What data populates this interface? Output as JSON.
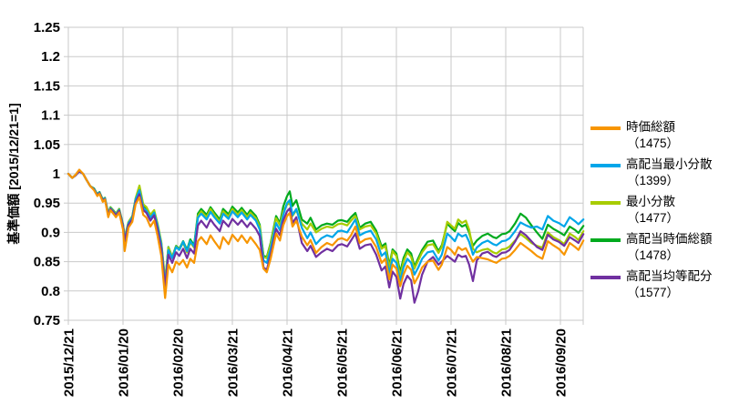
{
  "figure": {
    "y_axis_label": "基準価額 [2015/12/21=1]",
    "y_ticks": [
      "1.25",
      "1.2",
      "1.15",
      "1.1",
      "1.05",
      "1",
      "0.95",
      "0.9",
      "0.85",
      "0.8",
      "0.75"
    ],
    "y_tick_values": [
      1.25,
      1.2,
      1.15,
      1.1,
      1.05,
      1.0,
      0.95,
      0.9,
      0.85,
      0.8,
      0.75
    ],
    "x_ticks": [
      "2015/12/21",
      "2016/01/20",
      "2016/02/20",
      "2016/03/21",
      "2016/04/21",
      "2016/05/21",
      "2016/06/21",
      "2016/07/21",
      "2016/08/21",
      "2016/09/20"
    ],
    "grid_color": "#c9c9c9",
    "background": "#ffffff"
  },
  "chart_data": {
    "type": "line",
    "title": "",
    "xlabel": "",
    "ylabel": "基準価額 [2015/12/21=1]",
    "ylim": [
      0.75,
      1.25
    ],
    "xlim": [
      0,
      9.42
    ],
    "grid": true,
    "legend_position": "right",
    "x_unit": "months since 2015/12/21 (one unit = one x-axis tick interval)",
    "x": [
      0,
      0.07,
      0.13,
      0.2,
      0.27,
      0.33,
      0.4,
      0.47,
      0.53,
      0.57,
      0.63,
      0.67,
      0.73,
      0.77,
      0.83,
      0.87,
      0.93,
      1.0,
      1.03,
      1.1,
      1.17,
      1.23,
      1.3,
      1.37,
      1.43,
      1.5,
      1.57,
      1.63,
      1.7,
      1.77,
      1.83,
      1.9,
      1.97,
      2.03,
      2.1,
      2.17,
      2.23,
      2.3,
      2.37,
      2.43,
      2.53,
      2.6,
      2.67,
      2.77,
      2.83,
      2.93,
      3.0,
      3.1,
      3.17,
      3.27,
      3.33,
      3.43,
      3.5,
      3.57,
      3.63,
      3.7,
      3.8,
      3.87,
      3.93,
      4.0,
      4.05,
      4.1,
      4.17,
      4.27,
      4.37,
      4.43,
      4.53,
      4.63,
      4.73,
      4.83,
      4.93,
      5.0,
      5.1,
      5.17,
      5.25,
      5.33,
      5.43,
      5.53,
      5.63,
      5.73,
      5.8,
      5.87,
      5.93,
      6.0,
      6.07,
      6.13,
      6.2,
      6.27,
      6.33,
      6.4,
      6.47,
      6.57,
      6.67,
      6.77,
      6.83,
      6.93,
      7.0,
      7.07,
      7.13,
      7.2,
      7.27,
      7.33,
      7.4,
      7.47,
      7.57,
      7.67,
      7.77,
      7.83,
      7.93,
      8.0,
      8.07,
      8.17,
      8.27,
      8.37,
      8.47,
      8.57,
      8.67,
      8.77,
      8.87,
      8.97,
      9.07,
      9.17,
      9.27,
      9.33,
      9.42
    ],
    "series": [
      {
        "name": "時価総額",
        "code": "（1475）",
        "color": "#F79500",
        "values": [
          1.0,
          0.993,
          0.998,
          1.007,
          1.0,
          0.99,
          0.979,
          0.972,
          0.962,
          0.966,
          0.952,
          0.956,
          0.926,
          0.938,
          0.931,
          0.926,
          0.934,
          0.905,
          0.868,
          0.908,
          0.918,
          0.948,
          0.96,
          0.93,
          0.925,
          0.91,
          0.92,
          0.895,
          0.86,
          0.788,
          0.845,
          0.832,
          0.85,
          0.845,
          0.853,
          0.84,
          0.855,
          0.848,
          0.885,
          0.892,
          0.88,
          0.895,
          0.885,
          0.872,
          0.892,
          0.88,
          0.896,
          0.885,
          0.895,
          0.882,
          0.892,
          0.88,
          0.87,
          0.838,
          0.832,
          0.855,
          0.898,
          0.886,
          0.912,
          0.928,
          0.933,
          0.91,
          0.92,
          0.893,
          0.878,
          0.887,
          0.865,
          0.875,
          0.882,
          0.878,
          0.888,
          0.89,
          0.886,
          0.895,
          0.91,
          0.882,
          0.888,
          0.89,
          0.875,
          0.848,
          0.855,
          0.82,
          0.845,
          0.838,
          0.808,
          0.828,
          0.843,
          0.836,
          0.813,
          0.825,
          0.84,
          0.85,
          0.852,
          0.836,
          0.845,
          0.875,
          0.87,
          0.862,
          0.875,
          0.87,
          0.873,
          0.862,
          0.85,
          0.858,
          0.856,
          0.854,
          0.85,
          0.848,
          0.855,
          0.856,
          0.86,
          0.87,
          0.882,
          0.875,
          0.868,
          0.86,
          0.855,
          0.885,
          0.878,
          0.872,
          0.862,
          0.882,
          0.875,
          0.87,
          0.886
        ]
      },
      {
        "name": "高配当最小分散",
        "code": "（1399）",
        "color": "#00A6E9",
        "values": [
          1.0,
          0.993,
          0.997,
          1.004,
          1.0,
          0.99,
          0.979,
          0.974,
          0.964,
          0.968,
          0.955,
          0.958,
          0.93,
          0.941,
          0.935,
          0.93,
          0.938,
          0.912,
          0.888,
          0.916,
          0.926,
          0.956,
          0.972,
          0.942,
          0.937,
          0.925,
          0.934,
          0.912,
          0.88,
          0.81,
          0.87,
          0.856,
          0.875,
          0.87,
          0.884,
          0.868,
          0.885,
          0.876,
          0.925,
          0.932,
          0.922,
          0.935,
          0.926,
          0.915,
          0.932,
          0.923,
          0.936,
          0.926,
          0.934,
          0.922,
          0.93,
          0.92,
          0.905,
          0.852,
          0.848,
          0.872,
          0.916,
          0.904,
          0.93,
          0.95,
          0.955,
          0.93,
          0.94,
          0.908,
          0.89,
          0.9,
          0.88,
          0.89,
          0.895,
          0.892,
          0.902,
          0.903,
          0.9,
          0.91,
          0.922,
          0.895,
          0.9,
          0.903,
          0.888,
          0.86,
          0.866,
          0.829,
          0.855,
          0.848,
          0.817,
          0.84,
          0.855,
          0.848,
          0.828,
          0.84,
          0.855,
          0.866,
          0.868,
          0.852,
          0.862,
          0.898,
          0.892,
          0.885,
          0.898,
          0.893,
          0.896,
          0.884,
          0.862,
          0.874,
          0.882,
          0.886,
          0.88,
          0.878,
          0.885,
          0.886,
          0.89,
          0.902,
          0.917,
          0.912,
          0.908,
          0.91,
          0.905,
          0.928,
          0.92,
          0.916,
          0.91,
          0.926,
          0.919,
          0.914,
          0.922
        ]
      },
      {
        "name": "最小分散",
        "code": "（1477）",
        "color": "#A8CC00",
        "values": [
          1.0,
          0.993,
          0.997,
          1.005,
          1.0,
          0.99,
          0.979,
          0.974,
          0.964,
          0.968,
          0.955,
          0.958,
          0.931,
          0.942,
          0.936,
          0.931,
          0.939,
          0.913,
          0.892,
          0.918,
          0.928,
          0.958,
          0.98,
          0.948,
          0.943,
          0.93,
          0.938,
          0.916,
          0.884,
          0.818,
          0.874,
          0.858,
          0.876,
          0.871,
          0.882,
          0.866,
          0.883,
          0.874,
          0.928,
          0.936,
          0.926,
          0.94,
          0.93,
          0.918,
          0.936,
          0.927,
          0.94,
          0.93,
          0.938,
          0.926,
          0.934,
          0.924,
          0.91,
          0.858,
          0.856,
          0.88,
          0.924,
          0.912,
          0.936,
          0.947,
          0.951,
          0.928,
          0.938,
          0.915,
          0.905,
          0.915,
          0.9,
          0.906,
          0.91,
          0.908,
          0.914,
          0.915,
          0.912,
          0.92,
          0.928,
          0.905,
          0.91,
          0.912,
          0.898,
          0.872,
          0.877,
          0.838,
          0.868,
          0.86,
          0.825,
          0.85,
          0.866,
          0.858,
          0.838,
          0.852,
          0.866,
          0.878,
          0.88,
          0.865,
          0.875,
          0.918,
          0.912,
          0.906,
          0.922,
          0.916,
          0.92,
          0.905,
          0.872,
          0.866,
          0.87,
          0.872,
          0.866,
          0.864,
          0.871,
          0.872,
          0.876,
          0.886,
          0.897,
          0.89,
          0.882,
          0.877,
          0.874,
          0.9,
          0.892,
          0.887,
          0.88,
          0.898,
          0.892,
          0.887,
          0.902
        ]
      },
      {
        "name": "高配当時価総額",
        "code": "（1478）",
        "color": "#00AA1E",
        "values": [
          1.0,
          0.993,
          0.998,
          1.006,
          1.0,
          0.99,
          0.979,
          0.975,
          0.965,
          0.969,
          0.956,
          0.959,
          0.932,
          0.943,
          0.937,
          0.932,
          0.94,
          0.914,
          0.89,
          0.917,
          0.927,
          0.957,
          0.978,
          0.946,
          0.941,
          0.928,
          0.936,
          0.914,
          0.882,
          0.815,
          0.875,
          0.858,
          0.877,
          0.872,
          0.885,
          0.87,
          0.888,
          0.878,
          0.932,
          0.94,
          0.93,
          0.943,
          0.934,
          0.922,
          0.94,
          0.931,
          0.944,
          0.934,
          0.942,
          0.93,
          0.938,
          0.928,
          0.913,
          0.86,
          0.858,
          0.882,
          0.928,
          0.916,
          0.944,
          0.962,
          0.97,
          0.945,
          0.955,
          0.922,
          0.915,
          0.925,
          0.905,
          0.912,
          0.915,
          0.913,
          0.92,
          0.921,
          0.918,
          0.926,
          0.933,
          0.908,
          0.915,
          0.918,
          0.903,
          0.876,
          0.881,
          0.843,
          0.871,
          0.864,
          0.832,
          0.856,
          0.871,
          0.864,
          0.842,
          0.856,
          0.87,
          0.884,
          0.886,
          0.868,
          0.878,
          0.915,
          0.908,
          0.902,
          0.916,
          0.91,
          0.913,
          0.9,
          0.877,
          0.886,
          0.894,
          0.898,
          0.892,
          0.89,
          0.897,
          0.898,
          0.902,
          0.915,
          0.932,
          0.925,
          0.912,
          0.9,
          0.889,
          0.913,
          0.906,
          0.901,
          0.895,
          0.91,
          0.904,
          0.899,
          0.911
        ]
      },
      {
        "name": "高配当均等配分",
        "code": "（1577）",
        "color": "#7030A0",
        "values": [
          1.0,
          0.993,
          0.997,
          1.004,
          1.0,
          0.99,
          0.979,
          0.973,
          0.963,
          0.967,
          0.954,
          0.957,
          0.929,
          0.94,
          0.934,
          0.929,
          0.937,
          0.91,
          0.885,
          0.913,
          0.922,
          0.951,
          0.965,
          0.938,
          0.933,
          0.92,
          0.929,
          0.906,
          0.872,
          0.806,
          0.862,
          0.848,
          0.866,
          0.86,
          0.872,
          0.856,
          0.872,
          0.864,
          0.912,
          0.92,
          0.908,
          0.922,
          0.913,
          0.902,
          0.92,
          0.91,
          0.923,
          0.913,
          0.921,
          0.909,
          0.917,
          0.906,
          0.894,
          0.84,
          0.836,
          0.862,
          0.906,
          0.895,
          0.92,
          0.936,
          0.941,
          0.916,
          0.926,
          0.882,
          0.868,
          0.877,
          0.858,
          0.866,
          0.872,
          0.868,
          0.878,
          0.88,
          0.876,
          0.886,
          0.898,
          0.872,
          0.878,
          0.88,
          0.862,
          0.835,
          0.842,
          0.806,
          0.833,
          0.824,
          0.787,
          0.812,
          0.826,
          0.818,
          0.78,
          0.8,
          0.828,
          0.85,
          0.858,
          0.845,
          0.85,
          0.86,
          0.855,
          0.85,
          0.862,
          0.858,
          0.86,
          0.845,
          0.817,
          0.852,
          0.864,
          0.867,
          0.86,
          0.858,
          0.865,
          0.866,
          0.87,
          0.884,
          0.902,
          0.895,
          0.885,
          0.875,
          0.87,
          0.896,
          0.888,
          0.884,
          0.877,
          0.892,
          0.886,
          0.882,
          0.897
        ]
      }
    ]
  }
}
